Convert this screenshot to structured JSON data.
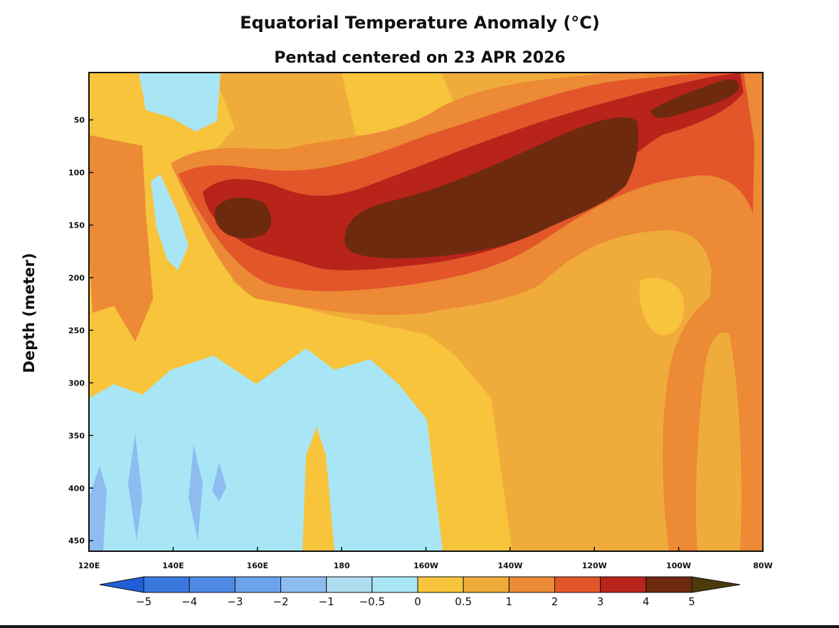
{
  "chart_data": {
    "type": "heatmap",
    "title": "Equatorial Temperature Anomaly (°C)",
    "subtitle": "Pentad centered on 23 APR 2026",
    "ylabel": "Depth (meter)",
    "xlabel": "",
    "x_axis": {
      "range_lon_east": [
        120,
        280
      ],
      "ticks": [
        {
          "value": 120,
          "label": "120E"
        },
        {
          "value": 140,
          "label": "140E"
        },
        {
          "value": 160,
          "label": "160E"
        },
        {
          "value": 180,
          "label": "180"
        },
        {
          "value": 200,
          "label": "160W"
        },
        {
          "value": 220,
          "label": "140W"
        },
        {
          "value": 240,
          "label": "120W"
        },
        {
          "value": 260,
          "label": "100W"
        },
        {
          "value": 280,
          "label": "80W"
        }
      ]
    },
    "y_axis": {
      "range": [
        5,
        460
      ],
      "inverted": true,
      "ticks": [
        50,
        100,
        150,
        200,
        250,
        300,
        350,
        400,
        450
      ]
    },
    "colorbar": {
      "levels": [
        -5,
        -4,
        -3,
        -2,
        -1,
        -0.5,
        0,
        0.5,
        1,
        2,
        3,
        4,
        5
      ],
      "tick_labels": [
        "−5",
        "−4",
        "−3",
        "−2",
        "−1",
        "−0.5",
        "0",
        "0.5",
        "1",
        "2",
        "3",
        "4",
        "5"
      ],
      "colors": [
        "#1f5fd6",
        "#3a78e0",
        "#4f8be6",
        "#6aa2ec",
        "#8cbcf0",
        "#b0dcf0",
        "#a8e6f5",
        "#f7c43c",
        "#f0ac3a",
        "#ec8a36",
        "#e2562a",
        "#b8231a",
        "#6e2a0e",
        "#4a3a0c"
      ],
      "extend": "both"
    },
    "anomaly_regions": [
      {
        "feature": "warm core",
        "lon": [
          150,
          268
        ],
        "depth": [
          20,
          180
        ],
        "max_anomaly": 5
      },
      {
        "feature": "cold tongue west",
        "lon": [
          123,
          195
        ],
        "depth": [
          300,
          460
        ],
        "anomaly": -0.5
      },
      {
        "feature": "cold surface west",
        "lon": [
          135,
          149
        ],
        "depth": [
          5,
          55
        ],
        "anomaly": -0.5
      },
      {
        "feature": "warm band east deep",
        "lon": [
          257,
          277
        ],
        "depth": [
          300,
          460
        ],
        "anomaly": 2
      }
    ]
  }
}
